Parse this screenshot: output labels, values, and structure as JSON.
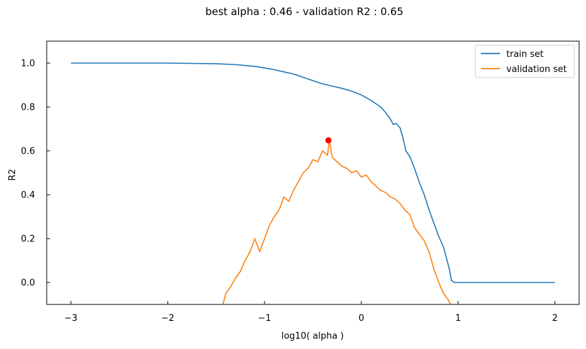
{
  "chart_data": {
    "type": "line",
    "title": "best alpha : 0.46 - validation R2 : 0.65",
    "xlabel": "log10( alpha )",
    "ylabel": "R2",
    "xlim": [
      -3.25,
      2.25
    ],
    "ylim": [
      -0.1,
      1.1
    ],
    "xticks": [
      -3,
      -2,
      -1,
      0,
      1,
      2
    ],
    "xtick_labels": [
      "−3",
      "−2",
      "−1",
      "0",
      "1",
      "2"
    ],
    "yticks": [
      0.0,
      0.2,
      0.4,
      0.6,
      0.8,
      1.0
    ],
    "ytick_labels": [
      "0.0",
      "0.2",
      "0.4",
      "0.6",
      "0.8",
      "1.0"
    ],
    "grid": false,
    "legend_position": "top-right",
    "series": [
      {
        "name": "train set",
        "color": "#1f77b4",
        "x": [
          -3.0,
          -2.5,
          -2.0,
          -1.5,
          -1.3,
          -1.1,
          -1.0,
          -0.9,
          -0.8,
          -0.7,
          -0.6,
          -0.5,
          -0.4,
          -0.3,
          -0.2,
          -0.1,
          0.0,
          0.1,
          0.2,
          0.25,
          0.3,
          0.33,
          0.36,
          0.4,
          0.43,
          0.46,
          0.5,
          0.55,
          0.6,
          0.65,
          0.7,
          0.75,
          0.8,
          0.85,
          0.88,
          0.91,
          0.93,
          0.96,
          1.0,
          1.5,
          2.0
        ],
        "y": [
          1.0,
          1.0,
          1.0,
          0.997,
          0.993,
          0.985,
          0.978,
          0.97,
          0.96,
          0.95,
          0.935,
          0.92,
          0.905,
          0.895,
          0.885,
          0.872,
          0.855,
          0.83,
          0.8,
          0.775,
          0.745,
          0.72,
          0.725,
          0.705,
          0.66,
          0.6,
          0.575,
          0.52,
          0.455,
          0.4,
          0.33,
          0.27,
          0.21,
          0.16,
          0.11,
          0.06,
          0.01,
          0.0,
          0.0,
          0.0,
          0.0
        ]
      },
      {
        "name": "validation set",
        "color": "#ff7f0e",
        "x": [
          -1.43,
          -1.4,
          -1.35,
          -1.3,
          -1.25,
          -1.2,
          -1.15,
          -1.1,
          -1.05,
          -1.0,
          -0.95,
          -0.9,
          -0.85,
          -0.8,
          -0.75,
          -0.7,
          -0.65,
          -0.6,
          -0.55,
          -0.5,
          -0.45,
          -0.4,
          -0.35,
          -0.33,
          -0.3,
          -0.25,
          -0.2,
          -0.15,
          -0.1,
          -0.05,
          0.0,
          0.05,
          0.1,
          0.15,
          0.2,
          0.25,
          0.3,
          0.35,
          0.4,
          0.45,
          0.5,
          0.55,
          0.6,
          0.65,
          0.7,
          0.75,
          0.8,
          0.85,
          0.9,
          0.92
        ],
        "y": [
          -0.1,
          -0.05,
          -0.02,
          0.02,
          0.05,
          0.1,
          0.14,
          0.2,
          0.14,
          0.2,
          0.26,
          0.3,
          0.33,
          0.39,
          0.37,
          0.42,
          0.46,
          0.5,
          0.52,
          0.56,
          0.55,
          0.6,
          0.58,
          0.648,
          0.57,
          0.55,
          0.53,
          0.52,
          0.5,
          0.51,
          0.48,
          0.49,
          0.46,
          0.44,
          0.42,
          0.41,
          0.39,
          0.38,
          0.36,
          0.33,
          0.31,
          0.25,
          0.22,
          0.19,
          0.14,
          0.06,
          0.0,
          -0.05,
          -0.08,
          -0.1
        ]
      }
    ],
    "best_point": {
      "x": -0.34,
      "y": 0.648,
      "color": "#ff0000"
    }
  }
}
